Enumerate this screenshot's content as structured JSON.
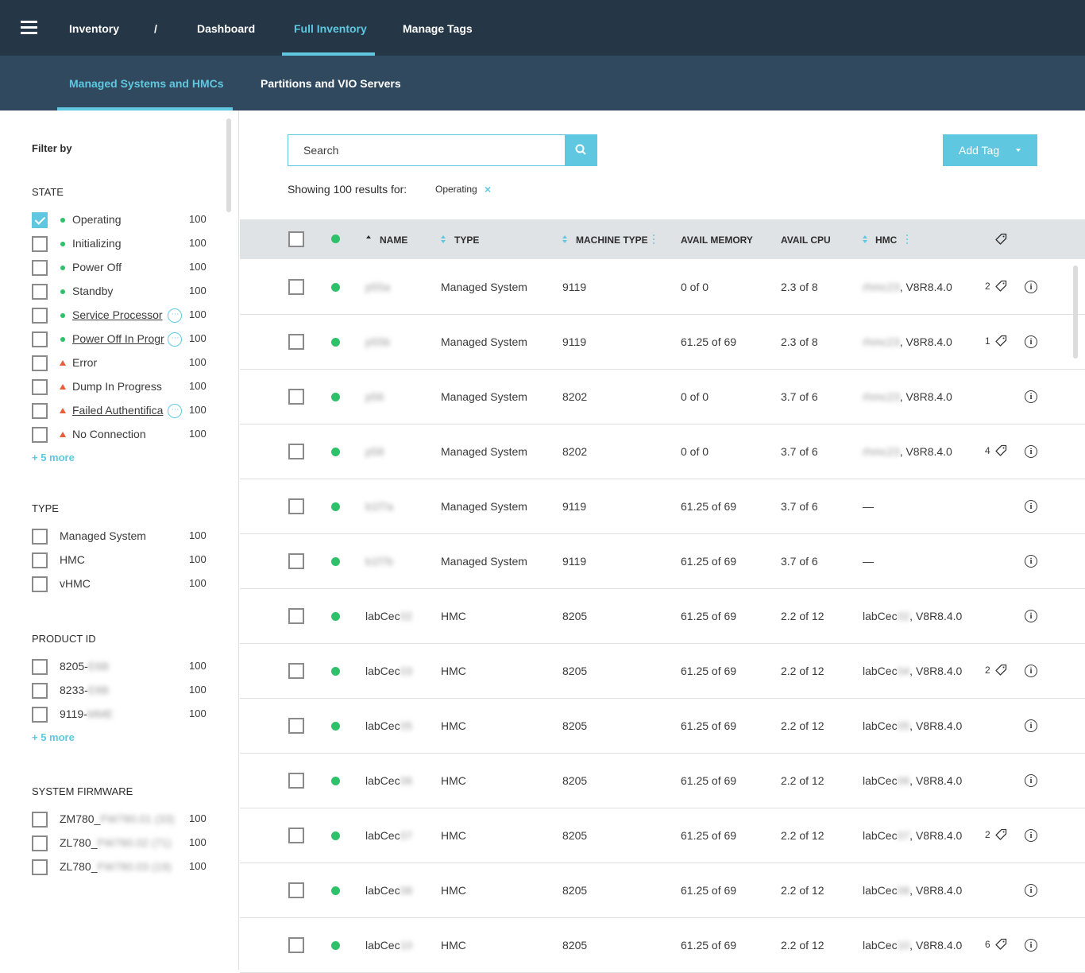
{
  "nav": {
    "items": [
      {
        "label": "Inventory"
      },
      {
        "label": "/"
      },
      {
        "label": "Dashboard"
      },
      {
        "label": "Full Inventory"
      },
      {
        "label": "Manage Tags"
      }
    ]
  },
  "subnav": {
    "items": [
      {
        "label": "Managed Systems and HMCs"
      },
      {
        "label": "Partitions and VIO Servers"
      }
    ]
  },
  "sidebar": {
    "title": "Filter by",
    "state": {
      "title": "STATE",
      "items": [
        {
          "label": "Operating",
          "count": "100",
          "checked": true,
          "status": "ok"
        },
        {
          "label": "Initializing",
          "count": "100",
          "status": "ok"
        },
        {
          "label": "Power Off",
          "count": "100",
          "status": "ok"
        },
        {
          "label": "Standby",
          "count": "100",
          "status": "ok"
        },
        {
          "label": "Service Processor",
          "count": "100",
          "status": "ok",
          "more": "⋯"
        },
        {
          "label": "Power Off In Progr",
          "count": "100",
          "status": "ok",
          "more": "⋯"
        },
        {
          "label": "Error",
          "count": "100",
          "status": "warn"
        },
        {
          "label": "Dump In Progress",
          "count": "100",
          "status": "warn"
        },
        {
          "label": "Failed Authentifica",
          "count": "100",
          "status": "warn",
          "more": "⋯"
        },
        {
          "label": "No Connection",
          "count": "100",
          "status": "warn"
        }
      ],
      "more": "+ 5 more"
    },
    "type": {
      "title": "TYPE",
      "items": [
        {
          "label": "Managed System",
          "count": "100"
        },
        {
          "label": "HMC",
          "count": "100"
        },
        {
          "label": "vHMC",
          "count": "100"
        }
      ]
    },
    "product": {
      "title": "PRODUCT ID",
      "items": [
        {
          "label": "8205-",
          "hidden": "E6B",
          "count": "100"
        },
        {
          "label": "8233-",
          "hidden": "E8B",
          "count": "100"
        },
        {
          "label": "9119-",
          "hidden": "MME",
          "count": "100"
        }
      ],
      "more": "+ 5 more"
    },
    "firmware": {
      "title": "SYSTEM FIRMWARE",
      "items": [
        {
          "label": "ZM780_",
          "hidden": "FW780.01 (33)",
          "count": "100"
        },
        {
          "label": "ZL780_",
          "hidden": "FW780.02 (71)",
          "count": "100"
        },
        {
          "label": "ZL780_",
          "hidden": "FW780.03 (19)",
          "count": "100"
        }
      ]
    }
  },
  "search": {
    "placeholder": "Search"
  },
  "add_tag": {
    "label": "Add Tag"
  },
  "results": {
    "text": "Showing 100 results for:",
    "chip": "Operating",
    "chip_close": "×"
  },
  "table": {
    "headers": {
      "name": "NAME",
      "type": "TYPE",
      "machine_type": "MACHINE TYPE",
      "avail_memory": "AVAIL MEMORY",
      "avail_cpu": "AVAIL CPU",
      "hmc": "HMC"
    },
    "rows": [
      {
        "name": "",
        "name_hidden": "p55a",
        "type": "Managed System",
        "machine": "9119",
        "memory": "0 of 0",
        "cpu": "2.3 of 8",
        "hmc": "",
        "hmc_hidden": "rhmc23",
        "hmc_ver": ", V8R8.4.0",
        "tags": "2"
      },
      {
        "name": "",
        "name_hidden": "p55b",
        "type": "Managed System",
        "machine": "9119",
        "memory": "61.25 of 69",
        "cpu": "2.3 of 8",
        "hmc": "",
        "hmc_hidden": "rhmc23",
        "hmc_ver": ", V8R8.4.0",
        "tags": "1"
      },
      {
        "name": "",
        "name_hidden": "p56",
        "type": "Managed System",
        "machine": "8202",
        "memory": "0 of 0",
        "cpu": "3.7 of 6",
        "hmc": "",
        "hmc_hidden": "rhmc23",
        "hmc_ver": ", V8R8.4.0",
        "tags": ""
      },
      {
        "name": "",
        "name_hidden": "p58",
        "type": "Managed System",
        "machine": "8202",
        "memory": "0 of 0",
        "cpu": "3.7 of 6",
        "hmc": "",
        "hmc_hidden": "rhmc23",
        "hmc_ver": ", V8R8.4.0",
        "tags": "4"
      },
      {
        "name": "",
        "name_hidden": "b1f7a",
        "type": "Managed System",
        "machine": "9119",
        "memory": "61.25 of 69",
        "cpu": "3.7 of 6",
        "hmc": "—",
        "hmc_hidden": "",
        "hmc_ver": "",
        "tags": ""
      },
      {
        "name": "",
        "name_hidden": "b1f7b",
        "type": "Managed System",
        "machine": "9119",
        "memory": "61.25 of 69",
        "cpu": "3.7 of 6",
        "hmc": "—",
        "hmc_hidden": "",
        "hmc_ver": "",
        "tags": ""
      },
      {
        "name": "labCec",
        "name_hidden": "02",
        "type": "HMC",
        "machine": "8205",
        "memory": "61.25 of 69",
        "cpu": "2.2 of 12",
        "hmc": "labCec",
        "hmc_hidden": "02",
        "hmc_ver": ", V8R8.4.0",
        "tags": ""
      },
      {
        "name": "labCec",
        "name_hidden": "03",
        "type": "HMC",
        "machine": "8205",
        "memory": "61.25 of 69",
        "cpu": "2.2 of 12",
        "hmc": "labCec",
        "hmc_hidden": "04",
        "hmc_ver": ", V8R8.4.0",
        "tags": "2"
      },
      {
        "name": "labCec",
        "name_hidden": "05",
        "type": "HMC",
        "machine": "8205",
        "memory": "61.25 of 69",
        "cpu": "2.2 of 12",
        "hmc": "labCec",
        "hmc_hidden": "05",
        "hmc_ver": ", V8R8.4.0",
        "tags": ""
      },
      {
        "name": "labCec",
        "name_hidden": "06",
        "type": "HMC",
        "machine": "8205",
        "memory": "61.25 of 69",
        "cpu": "2.2 of 12",
        "hmc": "labCec",
        "hmc_hidden": "06",
        "hmc_ver": ", V8R8.4.0",
        "tags": ""
      },
      {
        "name": "labCec",
        "name_hidden": "07",
        "type": "HMC",
        "machine": "8205",
        "memory": "61.25 of 69",
        "cpu": "2.2 of 12",
        "hmc": "labCec",
        "hmc_hidden": "07",
        "hmc_ver": ", V8R8.4.0",
        "tags": "2"
      },
      {
        "name": "labCec",
        "name_hidden": "08",
        "type": "HMC",
        "machine": "8205",
        "memory": "61.25 of 69",
        "cpu": "2.2 of 12",
        "hmc": "labCec",
        "hmc_hidden": "08",
        "hmc_ver": ", V8R8.4.0",
        "tags": ""
      },
      {
        "name": "labCec",
        "name_hidden": "10",
        "type": "HMC",
        "machine": "8205",
        "memory": "61.25 of 69",
        "cpu": "2.2 of 12",
        "hmc": "labCec",
        "hmc_hidden": "10",
        "hmc_ver": ", V8R8.4.0",
        "tags": "6"
      }
    ]
  },
  "colors": {
    "accent": "#5fc8e0",
    "topbar": "#253646",
    "subbar": "#30495e",
    "ok": "#2ec16a",
    "warn": "#e85d3a"
  }
}
